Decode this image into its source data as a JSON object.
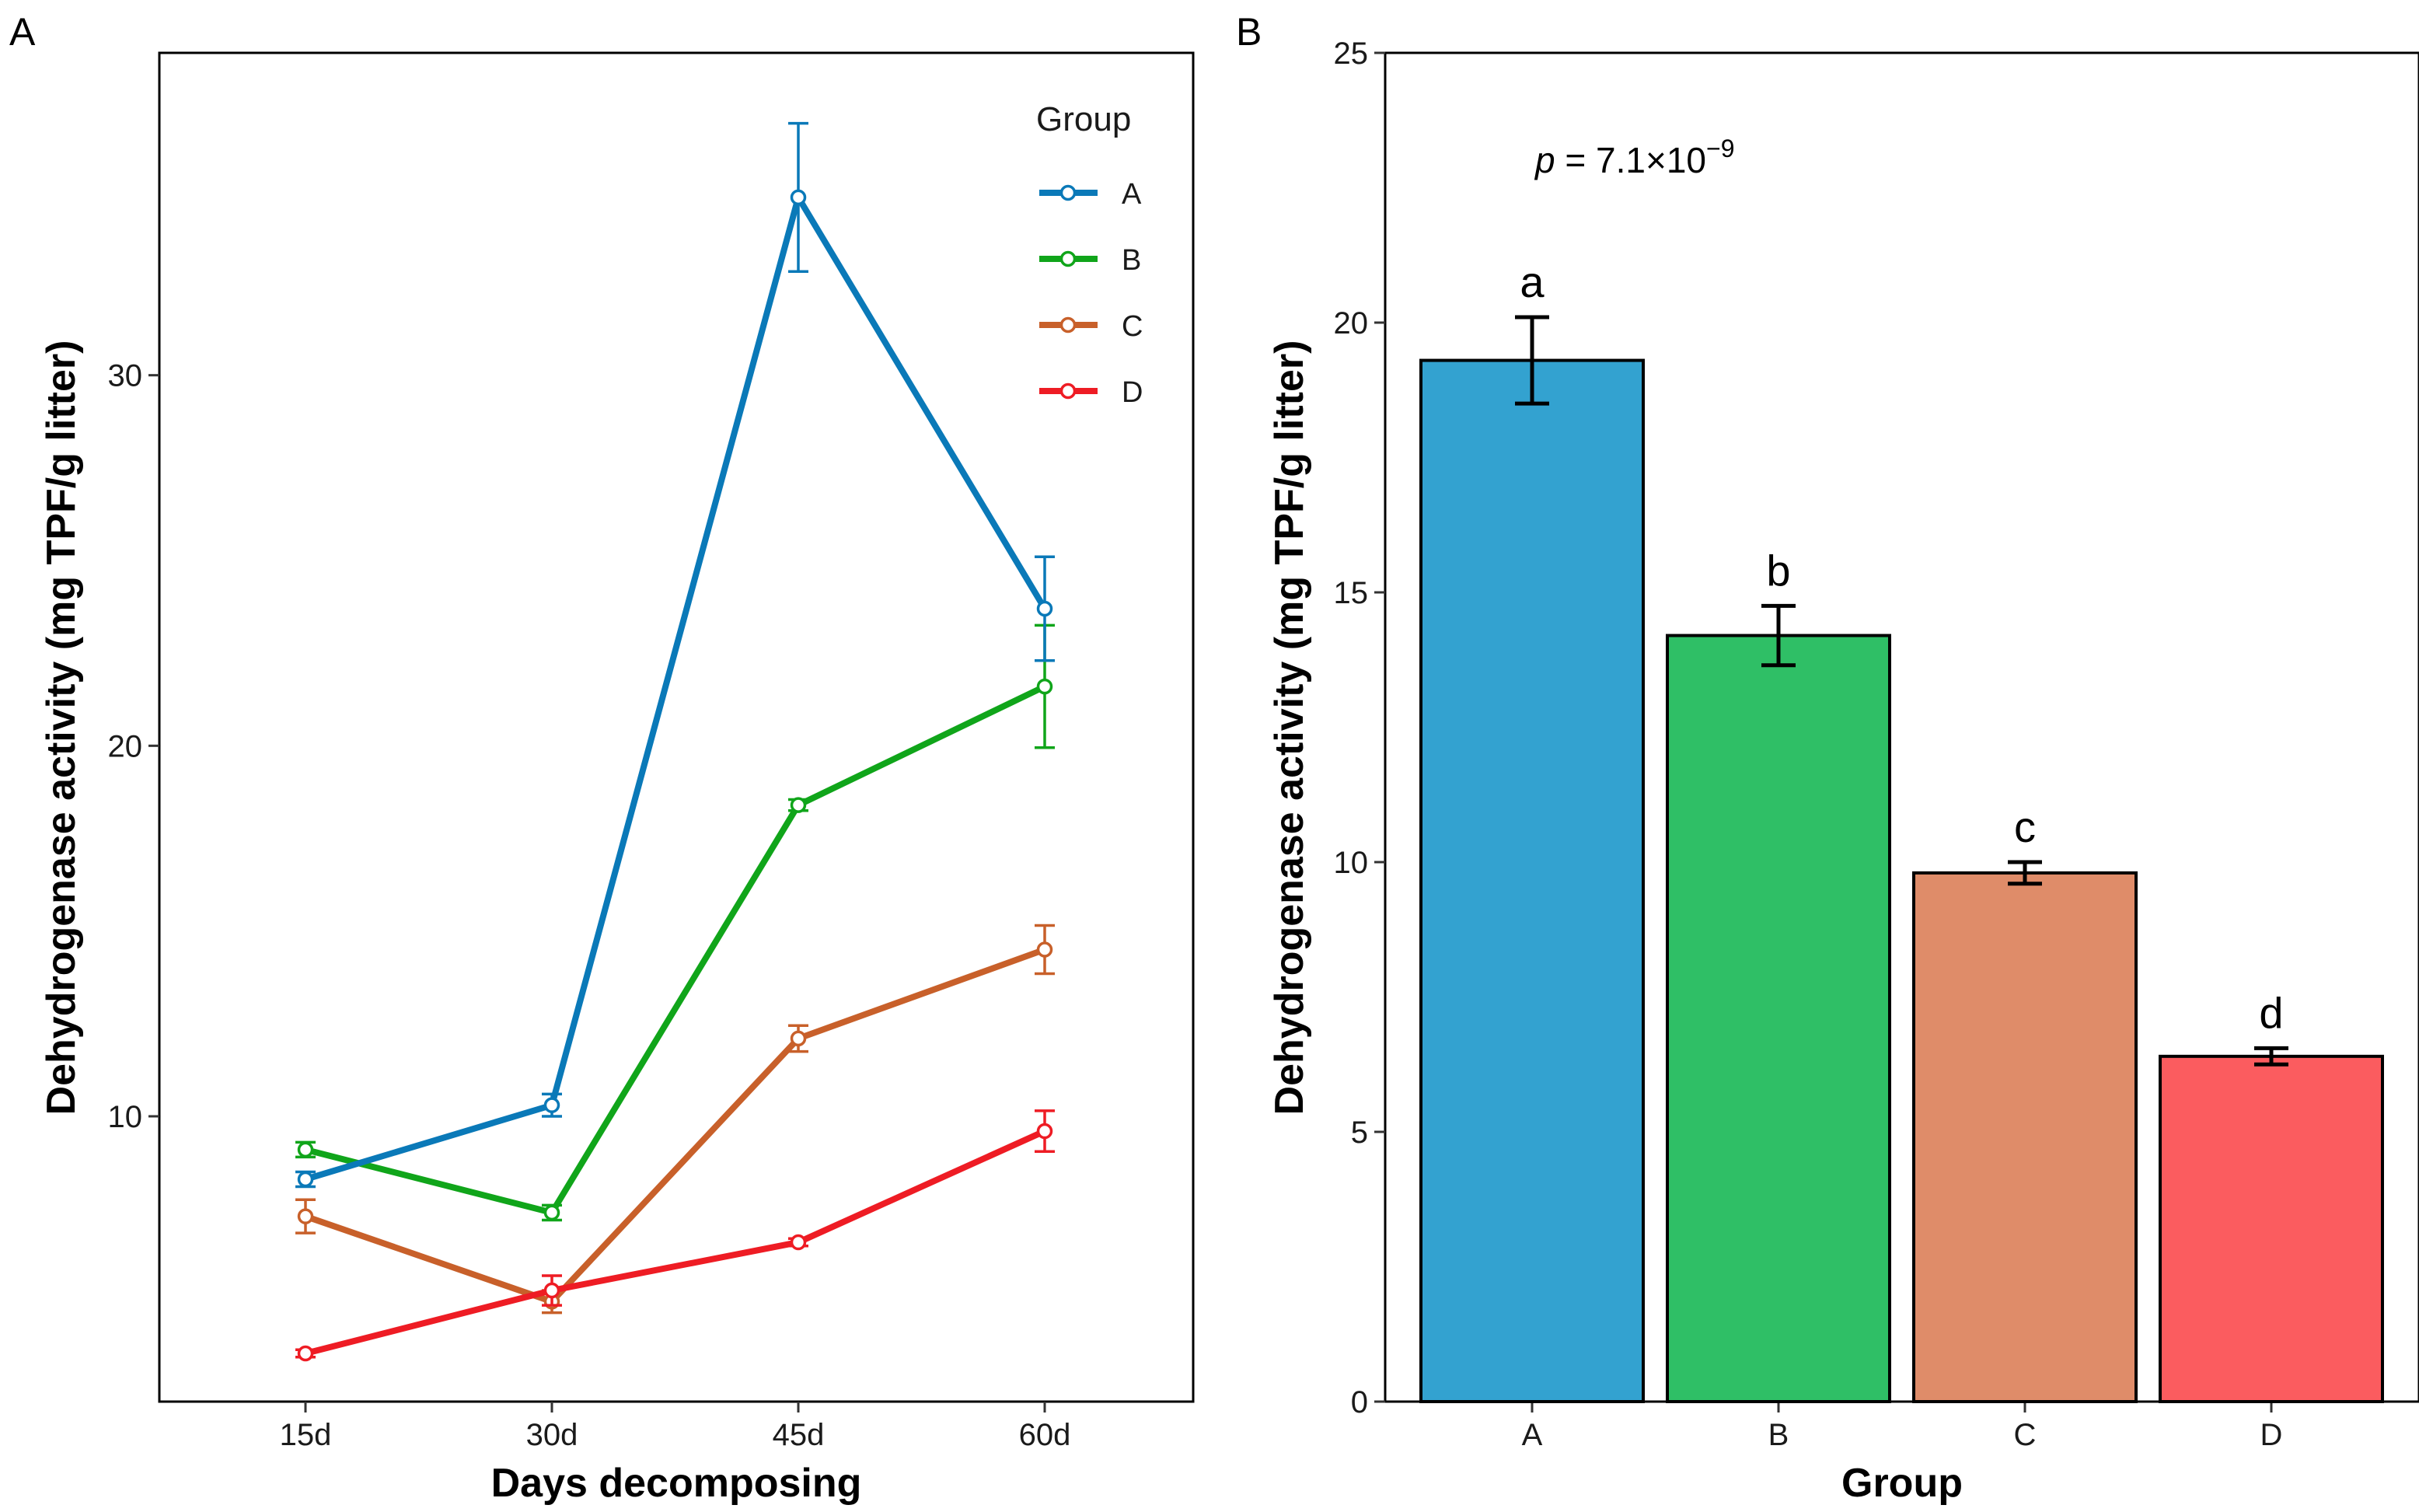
{
  "chart_data": [
    {
      "panel": "A",
      "type": "line",
      "x": [
        "15d",
        "30d",
        "45d",
        "60d"
      ],
      "xlabel": "Days decomposing",
      "ylabel": "Dehydrogenase activity (mg TPF/g litter)",
      "ylim": [
        2.3,
        38.7
      ],
      "yticks": [
        10,
        20,
        30
      ],
      "grid": false,
      "legend": {
        "title": "Group",
        "placement": "top-right"
      },
      "series": [
        {
          "name": "A",
          "color": "#0a79b8",
          "values": [
            8.3,
            10.3,
            34.8,
            23.7
          ],
          "errors": [
            0.2,
            0.3,
            2.0,
            1.4
          ]
        },
        {
          "name": "B",
          "color": "#10a51a",
          "values": [
            9.1,
            7.4,
            18.4,
            21.6
          ],
          "errors": [
            0.2,
            0.2,
            0.15,
            1.65
          ]
        },
        {
          "name": "C",
          "color": "#c8602a",
          "values": [
            7.3,
            5.0,
            12.1,
            14.5
          ],
          "errors": [
            0.45,
            0.3,
            0.35,
            0.65
          ]
        },
        {
          "name": "D",
          "color": "#ee1c24",
          "values": [
            3.6,
            5.3,
            6.6,
            9.6
          ],
          "errors": [
            0.1,
            0.4,
            0.1,
            0.55
          ]
        }
      ]
    },
    {
      "panel": "B",
      "type": "bar",
      "categories": [
        "A",
        "B",
        "C",
        "D"
      ],
      "values": [
        19.3,
        14.2,
        9.8,
        6.4
      ],
      "errors": [
        0.8,
        0.55,
        0.2,
        0.15
      ],
      "colors": [
        "#33a2d0",
        "#2fbf66",
        "#df8c69",
        "#fb5c5f"
      ],
      "significance": [
        "a",
        "b",
        "c",
        "d"
      ],
      "annotation": {
        "prefix": "p",
        "text": " = 7.1×10",
        "exponent": "−9"
      },
      "xlabel": "Group",
      "ylabel": "Dehydrogenase activity (mg TPF/g litter)",
      "ylim": [
        0,
        25
      ],
      "yticks": [
        0,
        5,
        10,
        15,
        20,
        25
      ],
      "grid": false
    }
  ]
}
